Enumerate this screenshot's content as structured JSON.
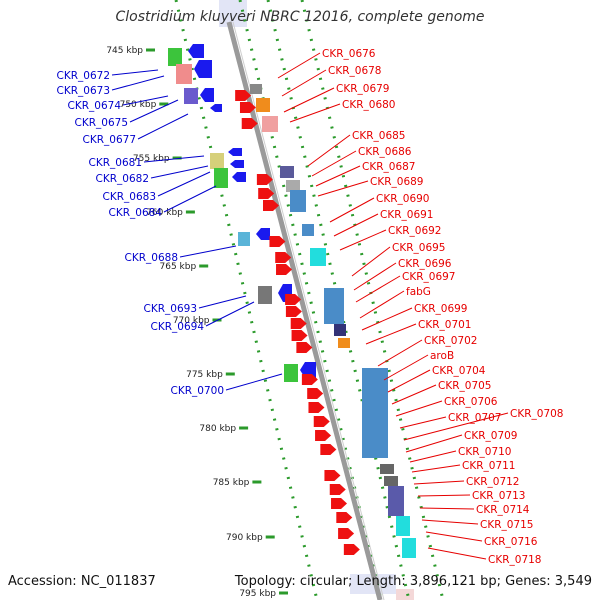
{
  "title": "Clostridium kluyveri NBRC 12016, complete genome",
  "footer": {
    "accession": "Accession: NC_011837",
    "summary": "Topology: circular; Length: 3,896,121 bp; Genes: 3,549"
  },
  "colors": {
    "backbone": "#9a9a9a",
    "tick_dot": "#2b9a2b",
    "forward_label": "#e60000",
    "reverse_label": "#0000cc",
    "forward_arrow": "#ee1111",
    "reverse_arrow": "#1a1aee"
  },
  "icons": {
    "feature_arrow": "arrow-icon"
  },
  "scale_ticks": [
    "745 kbp",
    "750 kbp",
    "755 kbp",
    "760 kbp",
    "765 kbp",
    "770 kbp",
    "775 kbp",
    "780 kbp",
    "785 kbp",
    "790 kbp",
    "795 kbp"
  ],
  "reverse_labels": [
    "CKR_0672",
    "CKR_0673",
    "CKR_0674",
    "CKR_0675",
    "CKR_0677",
    "CKR_0681",
    "CKR_0682",
    "CKR_0683",
    "CKR_0684",
    "CKR_0688",
    "CKR_0693",
    "CKR_0694",
    "CKR_0700"
  ],
  "forward_labels": [
    "CKR_0676",
    "CKR_0678",
    "CKR_0679",
    "CKR_0680",
    "CKR_0685",
    "CKR_0686",
    "CKR_0687",
    "CKR_0689",
    "CKR_0690",
    "CKR_0691",
    "CKR_0692",
    "CKR_0695",
    "CKR_0696",
    "CKR_0697",
    "fabG",
    "CKR_0699",
    "CKR_0701",
    "CKR_0702",
    "aroB",
    "CKR_0704",
    "CKR_0705",
    "CKR_0706",
    "CKR_0707",
    "CKR_0708",
    "CKR_0709",
    "CKR_0710",
    "CKR_0711",
    "CKR_0712",
    "CKR_0713",
    "CKR_0714",
    "CKR_0715",
    "CKR_0716",
    "CKR_0718"
  ]
}
